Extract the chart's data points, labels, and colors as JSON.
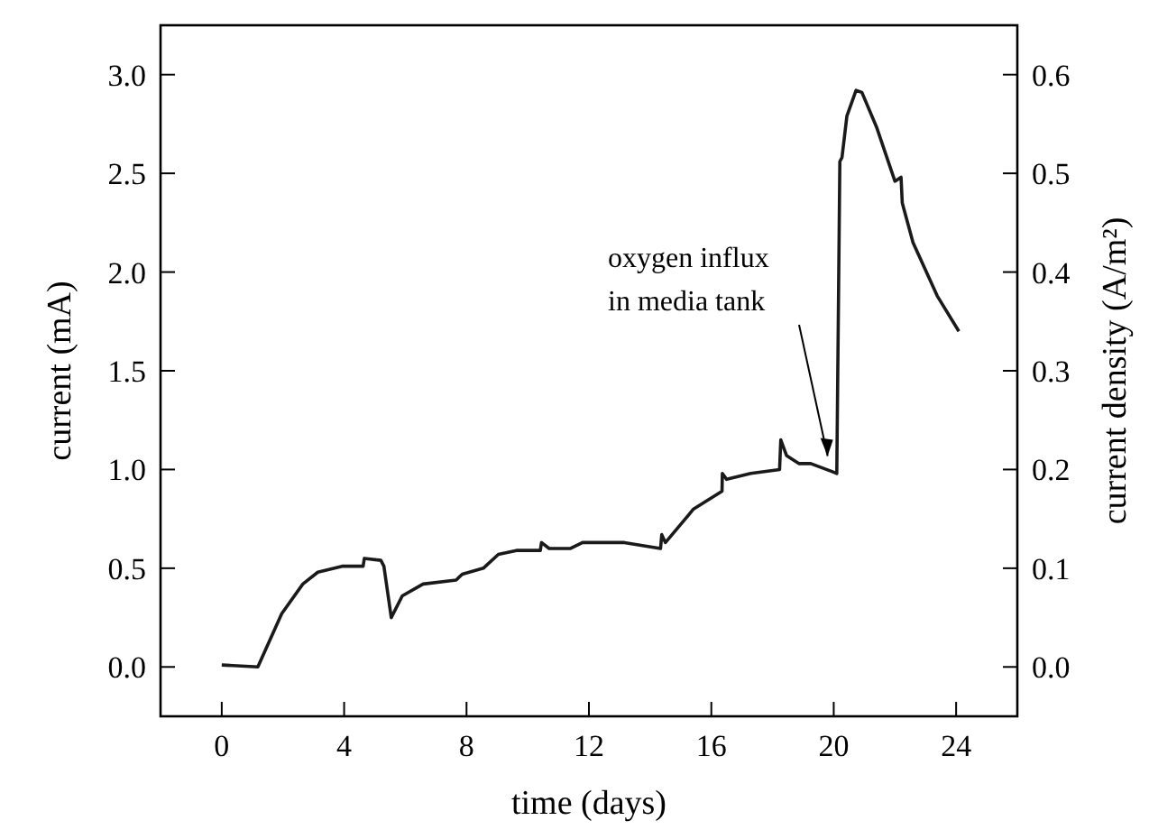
{
  "chart_data": {
    "type": "line",
    "xlabel": "time (days)",
    "ylabel": "current (mA)",
    "y2label": "current density (A/m²)",
    "xlim": [
      -2,
      26
    ],
    "xticks": [
      0,
      4,
      8,
      12,
      16,
      20,
      24
    ],
    "ylim": [
      -0.25,
      3.25
    ],
    "yticks": [
      {
        "value": 0,
        "label": "0.0"
      },
      {
        "value": 0.5,
        "label": "0.5"
      },
      {
        "value": 1,
        "label": "1.0"
      },
      {
        "value": 1.5,
        "label": "1.5"
      },
      {
        "value": 2,
        "label": "2.0"
      },
      {
        "value": 2.5,
        "label": "2.5"
      },
      {
        "value": 3,
        "label": "3.0"
      }
    ],
    "y2lim": [
      -0.05,
      0.65
    ],
    "y2ticks": [
      {
        "value": 0,
        "label": "0.0"
      },
      {
        "value": 0.1,
        "label": "0.1"
      },
      {
        "value": 0.2,
        "label": "0.2"
      },
      {
        "value": 0.3,
        "label": "0.3"
      },
      {
        "value": 0.4,
        "label": "0.4"
      },
      {
        "value": 0.5,
        "label": "0.5"
      },
      {
        "value": 0.6,
        "label": "0.6"
      }
    ],
    "grid": false,
    "marker": "none",
    "line_style": "solid",
    "series": [
      {
        "color": "#1a1a1a",
        "x": [
          0,
          1.18,
          1.96,
          2.65,
          3.14,
          3.93,
          4.62,
          4.66,
          5.2,
          5.3,
          5.54,
          5.9,
          6.58,
          7.66,
          7.86,
          8.55,
          9.04,
          9.63,
          10.41,
          10.45,
          10.7,
          11.4,
          11.79,
          13.16,
          14.34,
          14.38,
          14.5,
          15.42,
          16.35,
          16.36,
          16.5,
          17.29,
          18.23,
          18.27,
          18.46,
          18.86,
          19.25,
          19.94,
          20.1,
          20.2,
          20.27,
          20.43,
          20.73,
          20.92,
          21.41,
          22.0,
          22.2,
          22.24,
          22.59,
          23.38,
          24.09
        ],
        "values": [
          0.01,
          0,
          0.27,
          0.42,
          0.48,
          0.51,
          0.51,
          0.55,
          0.54,
          0.51,
          0.25,
          0.36,
          0.42,
          0.44,
          0.47,
          0.5,
          0.57,
          0.59,
          0.59,
          0.63,
          0.6,
          0.6,
          0.63,
          0.63,
          0.6,
          0.67,
          0.63,
          0.8,
          0.89,
          0.98,
          0.95,
          0.98,
          1.0,
          1.15,
          1.07,
          1.03,
          1.03,
          0.99,
          0.98,
          2.56,
          2.58,
          2.79,
          2.92,
          2.91,
          2.73,
          2.46,
          2.48,
          2.35,
          2.15,
          1.88,
          1.7
        ]
      }
    ],
    "annotations": [
      {
        "text": "oxygen influx\nin media tank",
        "x": 19.8,
        "y": 1.05
      }
    ]
  }
}
